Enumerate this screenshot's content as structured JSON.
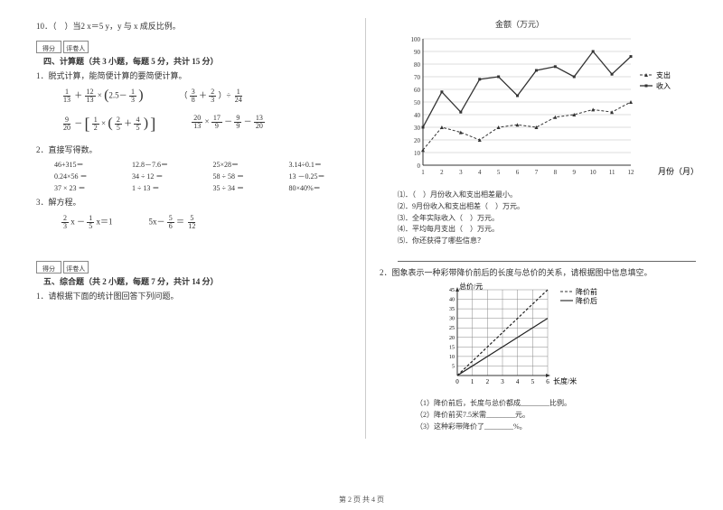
{
  "left": {
    "q10": "10．（　）当2 x＝5 y，y 与 x 成反比例。",
    "score_labels": {
      "a": "得分",
      "b": "评卷人"
    },
    "section4_title": "四、计算题（共 3 小题，每题 5 分，共计 15 分）",
    "q4_1_stem": "1．脱式计算，能简便计算的要简便计算。",
    "expr_a": {
      "f1n": "1",
      "f1d": "13",
      "plus": "＋",
      "f2n": "12",
      "f2d": "13",
      "times": "×",
      "inner_a": "2.5－",
      "f3n": "1",
      "f3d": "3"
    },
    "expr_b": {
      "lp": "（",
      "f1n": "3",
      "f1d": "8",
      "plus": " ＋ ",
      "f2n": "2",
      "f2d": "3",
      "rp": "）÷",
      "f3n": "1",
      "f3d": "24"
    },
    "expr_c": {
      "f1n": "9",
      "f1d": "20",
      "minus": "－",
      "f2n": "1",
      "f2d": "2",
      "times": "×",
      "lp": "（",
      "f3n": "2",
      "f3d": "5",
      "plus": "＋",
      "f4n": "4",
      "f4d": "5",
      "rp": "）"
    },
    "expr_d": {
      "f1n": "20",
      "f1d": "13",
      "t": "×",
      "f2n": "17",
      "f2d": "9",
      "m": "－",
      "f3n": "9",
      "f3d": "9",
      "m2": "－",
      "f4n": "13",
      "f4d": "20"
    },
    "q4_2_stem": "2．直接写得数。",
    "calc": [
      "46+315＝",
      "12.8－7.6＝",
      "25×28＝",
      "3.14÷0.1＝",
      "0.24×56 ＝",
      "34 ÷ 12 ＝",
      "58 ÷ 58 ＝",
      "13 －0.25＝",
      "37 × 23 ＝",
      "1 ÷ 13 ＝",
      "35 ÷ 34 ＝",
      "80×40%＝"
    ],
    "q4_3_stem": "3．解方程。",
    "eq1": {
      "f1n": "2",
      "f1d": "3",
      "x": " x －",
      "f2n": "1",
      "f2d": "5",
      "tail": " x＝1"
    },
    "eq2": {
      "head": "5x－ ",
      "f1n": "5",
      "f1d": "6",
      "eq": " ＝ ",
      "f2n": "5",
      "f2d": "12"
    },
    "section5_title": "五、综合题（共 2 小题，每题 7 分，共计 14 分）",
    "q5_1_stem": "1．请根据下面的统计图回答下列问题。"
  },
  "right": {
    "chart1_title": "金额（万元）",
    "chart1": {
      "months": [
        "1",
        "2",
        "3",
        "4",
        "5",
        "6",
        "7",
        "8",
        "9",
        "10",
        "11",
        "12"
      ],
      "ylabels": [
        "0",
        "10",
        "20",
        "30",
        "40",
        "50",
        "60",
        "70",
        "80",
        "90",
        "100"
      ],
      "income": [
        30,
        58,
        42,
        68,
        70,
        55,
        75,
        78,
        70,
        90,
        72,
        86
      ],
      "expense": [
        12,
        30,
        26,
        20,
        30,
        32,
        30,
        38,
        40,
        44,
        42,
        50
      ],
      "axis_x_label": "月份（月）",
      "legend": {
        "expense": "支出",
        "income": "收入"
      },
      "colors": {
        "line": "#333333",
        "grid": "#bbbbbb",
        "bg": "#ffffff"
      }
    },
    "q1_list": [
      "⑴．（　）月份收入和支出相差最小。",
      "⑵．9月份收入和支出相差（　）万元。",
      "⑶．全年实际收入（　）万元。",
      "⑷．平均每月支出（　）万元。",
      "⑸．你还获得了哪些信息？"
    ],
    "blank_line": "　",
    "q2_stem": "2．图象表示一种彩带降价前后的长度与总价的关系，请根据图中信息填空。",
    "chart2": {
      "xlabels": [
        "0",
        "1",
        "2",
        "3",
        "4",
        "5",
        "6"
      ],
      "ylabels": [
        "5",
        "10",
        "15",
        "20",
        "25",
        "30",
        "35",
        "40",
        "45"
      ],
      "axis_y": "总价/元",
      "axis_x": "长度/米",
      "before": [
        [
          0,
          0
        ],
        [
          6,
          45
        ]
      ],
      "after": [
        [
          0,
          0
        ],
        [
          6,
          30
        ]
      ],
      "legend": {
        "before": "降价前",
        "after": "降价后"
      },
      "colors": {
        "grid": "#888888",
        "line": "#222222",
        "bg": "#ffffff"
      }
    },
    "q2_list": [
      "（1）降价前后，长度与总价都成________比例。",
      "（2）降价前买7.5米需________元。",
      "（3）这种彩带降价了________%。"
    ]
  },
  "footer": "第 2 页 共 4 页"
}
